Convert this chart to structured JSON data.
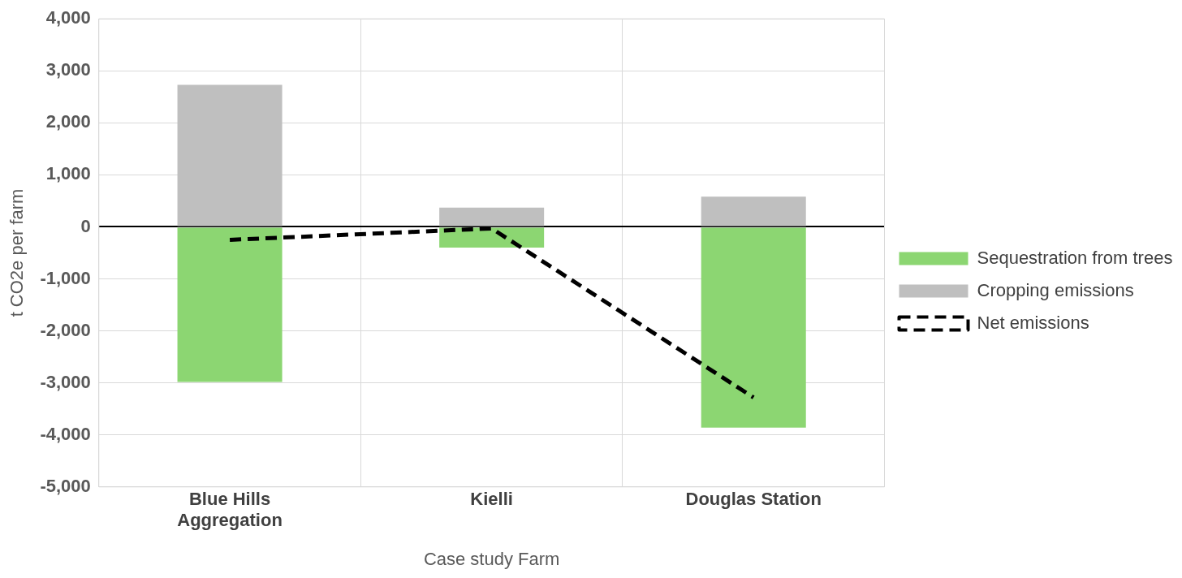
{
  "chart_data": {
    "type": "bar",
    "stacked": true,
    "xlabel": "Case study Farm",
    "ylabel": "t CO2e per farm",
    "categories": [
      "Blue Hills Aggregation",
      "Kielli",
      "Douglas Station"
    ],
    "series": [
      {
        "name": "Sequestration from trees",
        "color": "#8cd672",
        "values": [
          -2980,
          -400,
          -3860
        ]
      },
      {
        "name": "Cropping emissions",
        "color": "#bfbfbf",
        "values": [
          2730,
          370,
          580
        ]
      },
      {
        "name": "Net emissions",
        "type": "line",
        "color": "#000000",
        "line_style": "dashed",
        "marker": "none",
        "values": [
          -250,
          -30,
          -3280
        ]
      }
    ],
    "ylim": [
      -5000,
      4000
    ],
    "yticks": [
      {
        "value": -5000,
        "label": "-5,000"
      },
      {
        "value": -4000,
        "label": "-4,000"
      },
      {
        "value": -3000,
        "label": "-3,000"
      },
      {
        "value": -2000,
        "label": "-2,000"
      },
      {
        "value": -1000,
        "label": "-1,000"
      },
      0,
      {
        "value": 1000,
        "label": "1,000"
      },
      {
        "value": 2000,
        "label": "2,000"
      },
      {
        "value": 3000,
        "label": "3,000"
      },
      {
        "value": 4000,
        "label": "4,000"
      }
    ],
    "grid": true,
    "legend": "right"
  }
}
